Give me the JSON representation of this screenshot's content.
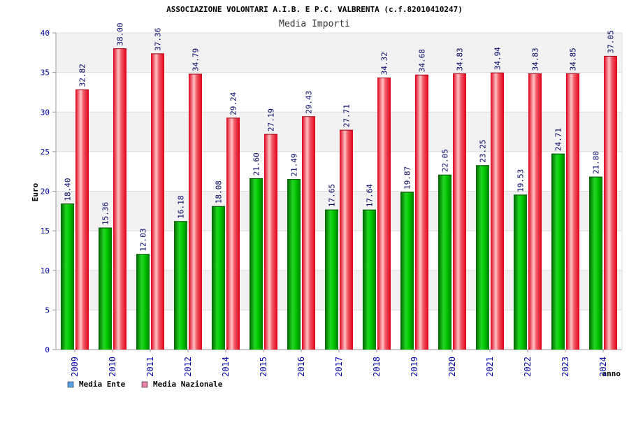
{
  "chart_data": {
    "type": "bar",
    "title": "ASSOCIAZIONE VOLONTARI A.I.B. E P.C. VALBRENTA (c.f.82010410247)",
    "subtitle": "Media Importi",
    "xlabel": "anno",
    "ylabel": "Euro",
    "ylim": [
      0,
      40
    ],
    "yticks": [
      0,
      5,
      10,
      15,
      20,
      25,
      30,
      35,
      40
    ],
    "grid": true,
    "legend_position": "bottom-left",
    "categories": [
      "2009",
      "2010",
      "2011",
      "2012",
      "2014",
      "2015",
      "2016",
      "2017",
      "2018",
      "2019",
      "2020",
      "2021",
      "2022",
      "2023",
      "2024"
    ],
    "series": [
      {
        "name": "Media Ente",
        "color": "#00b000",
        "legend_color": "#5aa0e6",
        "values": [
          18.4,
          15.36,
          12.03,
          16.18,
          18.08,
          21.6,
          21.49,
          17.65,
          17.64,
          19.87,
          22.05,
          23.25,
          19.53,
          24.71,
          21.8
        ],
        "labels": [
          "18.40",
          "15.36",
          "12.03",
          "16.18",
          "18.08",
          "21.60",
          "21.49",
          "17.65",
          "17.64",
          "19.87",
          "22.05",
          "23.25",
          "19.53",
          "24.71",
          "21.80"
        ]
      },
      {
        "name": "Media Nazionale",
        "color": "#e8141e",
        "legend_color": "#e67fa8",
        "values": [
          32.82,
          38.0,
          37.36,
          34.79,
          29.24,
          27.19,
          29.43,
          27.71,
          34.32,
          34.68,
          34.83,
          34.94,
          34.83,
          34.85,
          37.05
        ],
        "labels": [
          "32.82",
          "38.00",
          "37.36",
          "34.79",
          "29.24",
          "27.19",
          "29.43",
          "27.71",
          "34.32",
          "34.68",
          "34.83",
          "34.94",
          "34.83",
          "34.85",
          "37.05"
        ]
      }
    ]
  }
}
